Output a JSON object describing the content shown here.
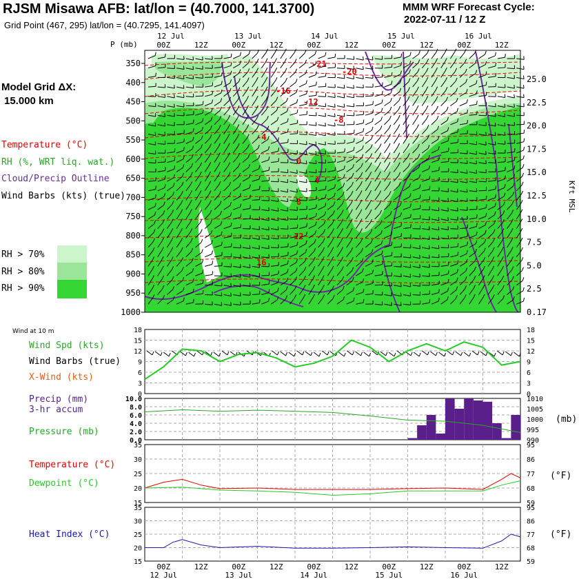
{
  "header": {
    "title": "RJSM Misawa AFB:  lat/lon = (40.7000, 141.3700)",
    "subtitle": "Grid Point (467, 295) lat/lon = (40.7295, 141.4097)",
    "cycle_label": "MMM WRF Forecast Cycle:",
    "cycle_value": "2022-07-11 / 12  Z"
  },
  "model_grid": {
    "label": "Model Grid ΔX:",
    "value": "15.000 km"
  },
  "legend": {
    "temperature": "Temperature (°C)",
    "rh": "RH (%, WRT liq. wat.)",
    "cloud": "Cloud/Precip Outline",
    "barbs": "Wind Barbs (kts) (true)",
    "rh_levels": [
      "RH > 70%",
      "RH > 80%",
      "RH > 90%"
    ]
  },
  "colors": {
    "rh70": "#ccf5cc",
    "rh80": "#99e699",
    "rh90": "#33d633",
    "temp": "#e60000",
    "cloud": "#6a2c9c",
    "wind_spd": "#22cc22",
    "precip": "#5a1f8a",
    "pressure": "#22aa22",
    "dewpoint": "#22cc22",
    "heat_index": "#1a1aa8"
  },
  "time_axis": {
    "top_labels": [
      "00Z",
      "12Z",
      "00Z",
      "12Z",
      "00Z",
      "12Z",
      "00Z",
      "12Z",
      "00Z",
      "12Z"
    ],
    "date_labels": [
      "12 Jul",
      "13 Jul",
      "14 Jul",
      "15 Jul",
      "16 Jul"
    ],
    "pressure_unit_label": "P (mb)"
  },
  "main_chart": {
    "pressure_ticks": [
      "350",
      "400",
      "450",
      "500",
      "550",
      "600",
      "650",
      "700",
      "750",
      "800",
      "850",
      "900",
      "950",
      "1000"
    ],
    "kft_ticks": [
      "25.0",
      "22.5",
      "20.0",
      "17.5",
      "15.0",
      "12.5",
      "10.0",
      "7.5",
      "5.0",
      "2.5",
      "0.17"
    ],
    "kft_axis_label": "Kft MSL",
    "isotherm_labels": [
      "-21",
      "-20",
      "-16",
      "-12",
      "-8",
      "-4",
      "0",
      "4",
      "8",
      "12",
      "16"
    ]
  },
  "wind_panel": {
    "caption": "Wind at 10 m",
    "labels": [
      "Wind Spd (kts)",
      "Wind Barbs (true)",
      "X-Wind (kts)"
    ],
    "y_ticks": [
      "18",
      "15",
      "12",
      "9",
      "6",
      "3",
      "0"
    ]
  },
  "precip_panel": {
    "labels": [
      "Precip (mm)",
      "3-hr accum",
      "Pressure (mb)"
    ],
    "left_ticks": [
      "10.0",
      "8.0",
      "6.0",
      "4.0",
      "2.0",
      "0.0"
    ],
    "right_ticks": [
      "1010",
      "1005",
      "1000",
      "995",
      "990"
    ],
    "right_unit": "(mb)"
  },
  "temp_panel": {
    "labels": [
      "Temperature (°C)",
      "Dewpoint (°C)"
    ],
    "left_ticks": [
      "35",
      "30",
      "25",
      "20",
      "15"
    ],
    "right_ticks": [
      "95",
      "86",
      "77",
      "68",
      "59"
    ],
    "right_unit": "(°F)"
  },
  "heat_panel": {
    "labels": [
      "Heat Index (°C)"
    ],
    "left_ticks": [
      "35",
      "30",
      "25",
      "20",
      "15"
    ],
    "right_ticks": [
      "95",
      "86",
      "77",
      "68",
      "59"
    ],
    "right_unit": "(°F)"
  },
  "chart_data": [
    {
      "type": "line",
      "title": "Wind at 10 m",
      "ylim": [
        0,
        18
      ],
      "x_range_hours": [
        0,
        120
      ],
      "series": [
        {
          "name": "Wind Spd (kts)",
          "x": [
            0,
            6,
            12,
            18,
            24,
            30,
            36,
            42,
            48,
            54,
            60,
            66,
            72,
            78,
            84,
            90,
            96,
            102,
            108,
            114,
            120
          ],
          "values": [
            4,
            7.5,
            12.5,
            12,
            9,
            11,
            11.5,
            10,
            7.5,
            8.5,
            10.5,
            15,
            13,
            9,
            12,
            14,
            12,
            14.5,
            13,
            8,
            9
          ]
        }
      ]
    },
    {
      "type": "bar",
      "title": "Precip (mm) 3-hr accum",
      "ylim": [
        0,
        10
      ],
      "x_hours": [
        87,
        90,
        93,
        96,
        99,
        102,
        105,
        108,
        111,
        114,
        117,
        120
      ],
      "values": [
        0.4,
        3.5,
        6.0,
        1.5,
        10,
        7.5,
        10,
        9.5,
        9.2,
        4.0,
        0.4,
        6.0
      ]
    },
    {
      "type": "line",
      "title": "Pressure (mb)",
      "ylim": [
        990,
        1010
      ],
      "series": [
        {
          "name": "Pressure (mb)",
          "x": [
            0,
            12,
            24,
            36,
            48,
            60,
            72,
            84,
            96,
            108,
            120
          ],
          "values": [
            1003.5,
            1004.5,
            1003.8,
            1004.3,
            1003.8,
            1003.2,
            1001.5,
            999.5,
            999.0,
            997.0,
            993.5
          ]
        }
      ]
    },
    {
      "type": "line",
      "title": "Temperature / Dewpoint",
      "ylim": [
        15,
        35
      ],
      "series": [
        {
          "name": "Temperature (°C)",
          "x": [
            0,
            6,
            12,
            18,
            24,
            36,
            48,
            60,
            72,
            84,
            96,
            108,
            114,
            117,
            120
          ],
          "values": [
            20,
            22,
            23,
            21,
            19.8,
            20,
            19.5,
            19.5,
            19.5,
            19.8,
            20,
            19.5,
            23,
            25,
            23.5
          ]
        },
        {
          "name": "Dewpoint (°C)",
          "x": [
            0,
            12,
            24,
            36,
            48,
            60,
            72,
            84,
            96,
            108,
            114,
            120
          ],
          "values": [
            20,
            20.3,
            19.3,
            19,
            18.5,
            17.5,
            18,
            19,
            19,
            19,
            21,
            22.5
          ]
        }
      ]
    },
    {
      "type": "line",
      "title": "Heat Index (°C)",
      "ylim": [
        15,
        35
      ],
      "series": [
        {
          "name": "Heat Index (°C)",
          "x": [
            0,
            6,
            9,
            12,
            18,
            24,
            36,
            48,
            60,
            72,
            84,
            96,
            108,
            114,
            117,
            120
          ],
          "values": [
            20,
            20,
            22,
            23,
            21,
            20,
            20.5,
            19.8,
            19.8,
            20,
            20.3,
            20,
            19.8,
            22.5,
            25,
            24
          ]
        }
      ]
    }
  ]
}
